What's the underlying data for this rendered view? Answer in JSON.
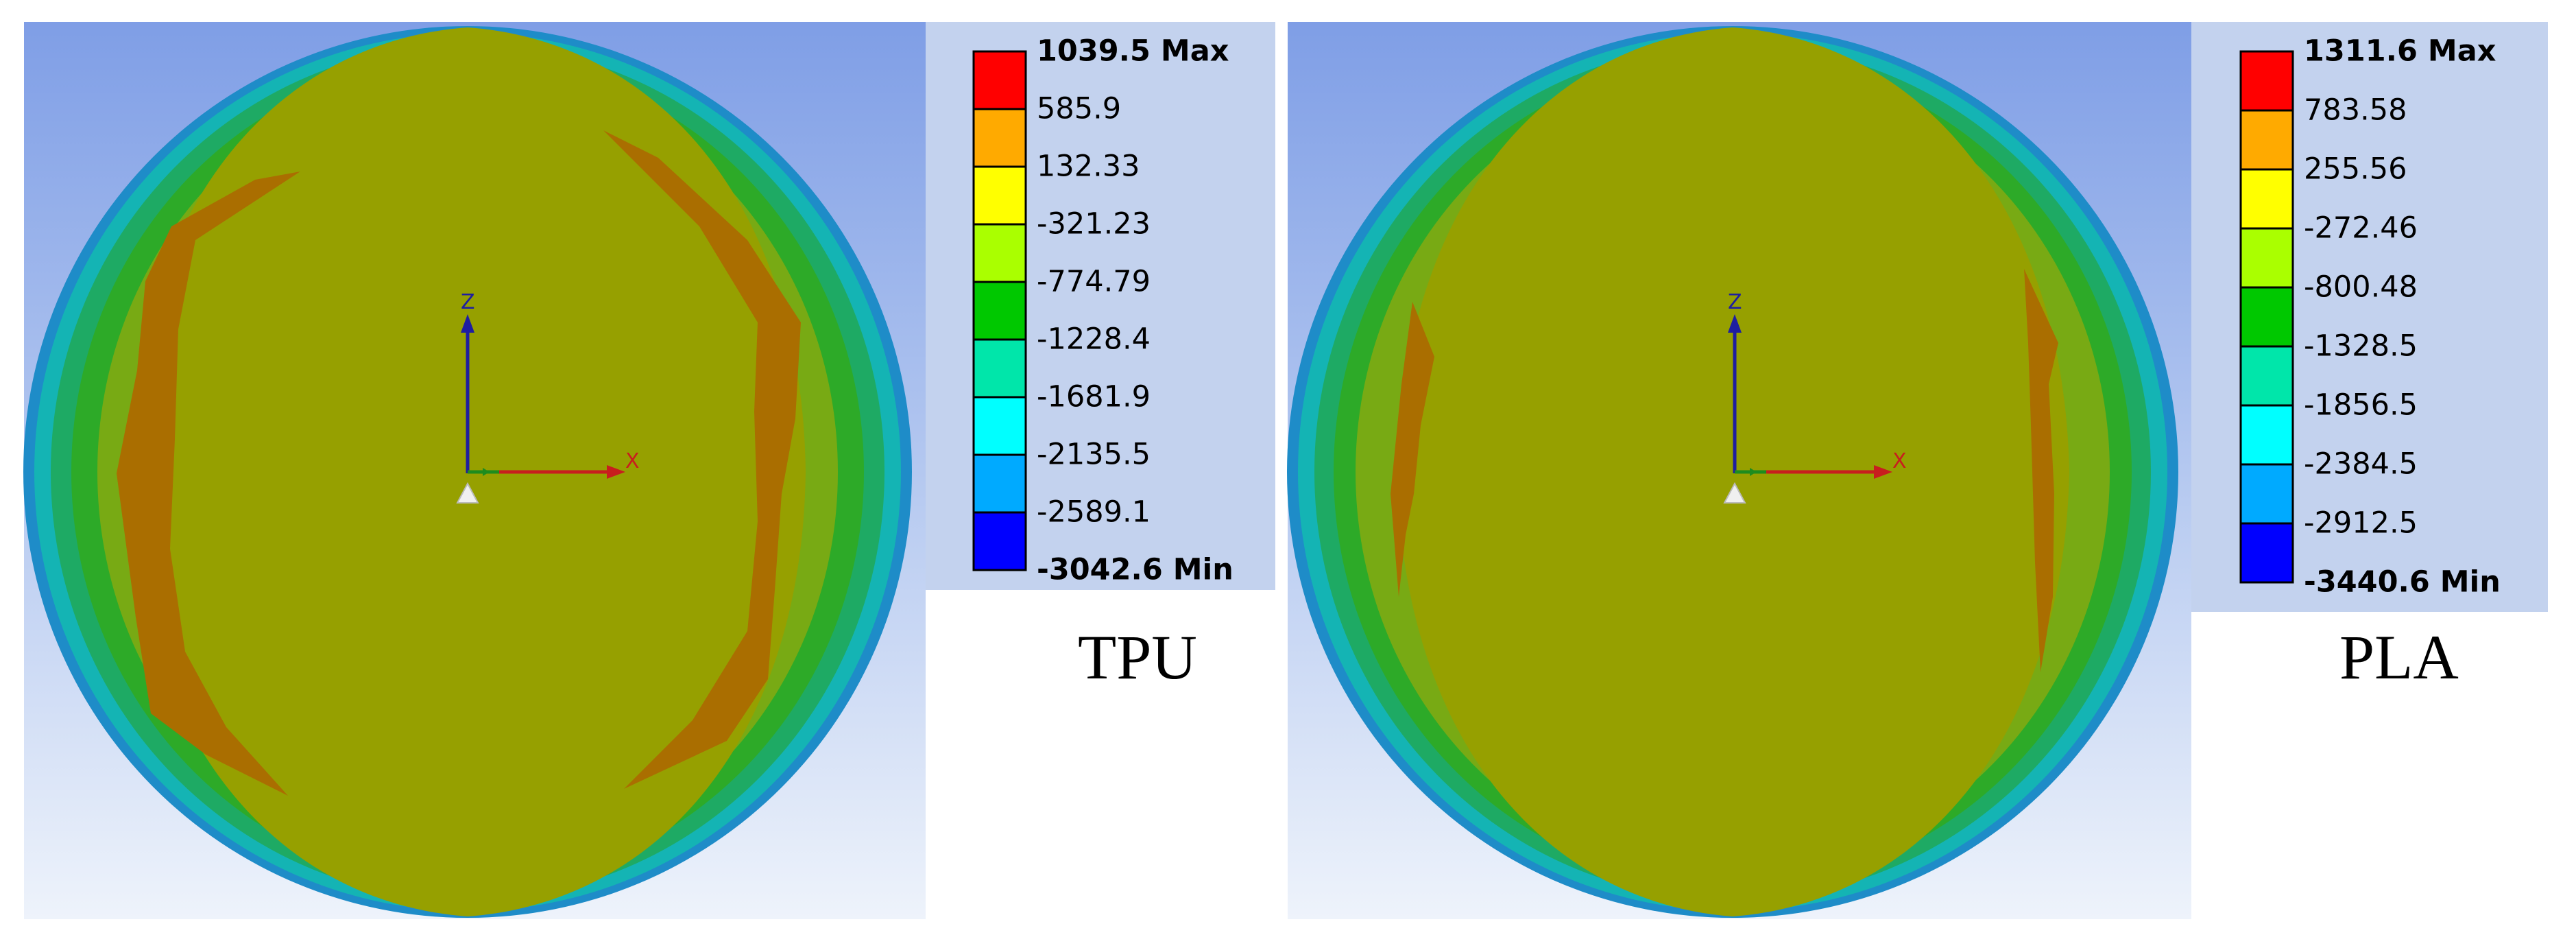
{
  "colors": {
    "background_top": "#7f9ee6",
    "background_bottom": "#e5edf9",
    "scale": [
      "#ff0000",
      "#ffaa00",
      "#ffff00",
      "#aaff00",
      "#00c800",
      "#00e6aa",
      "#00ffff",
      "#00aaff",
      "#0000ff"
    ],
    "contour": [
      "#1e8cc8",
      "#14b4b4",
      "#1eaa64",
      "#2daa28",
      "#78aa14",
      "#96a000",
      "#aa6e00"
    ],
    "axis_z": "#1e1ea0",
    "axis_x": "#c81e1e",
    "axis_y": "#1e8c1e"
  },
  "panels": [
    {
      "id": "tpu",
      "caption": "TPU",
      "legend": {
        "labels": [
          "1039.5 Max",
          "585.9",
          "132.33",
          "-321.23",
          "-774.79",
          "-1228.4",
          "-1681.9",
          "-2135.5",
          "-2589.1",
          "-3042.6 Min"
        ]
      },
      "axes": {
        "z": "Z",
        "x": "X"
      }
    },
    {
      "id": "pla",
      "caption": "PLA",
      "legend": {
        "labels": [
          "1311.6 Max",
          "783.58",
          "255.56",
          "-272.46",
          "-800.48",
          "-1328.5",
          "-1856.5",
          "-2384.5",
          "-2912.5",
          "-3440.6 Min"
        ]
      },
      "axes": {
        "z": "Z",
        "x": "X"
      }
    }
  ]
}
